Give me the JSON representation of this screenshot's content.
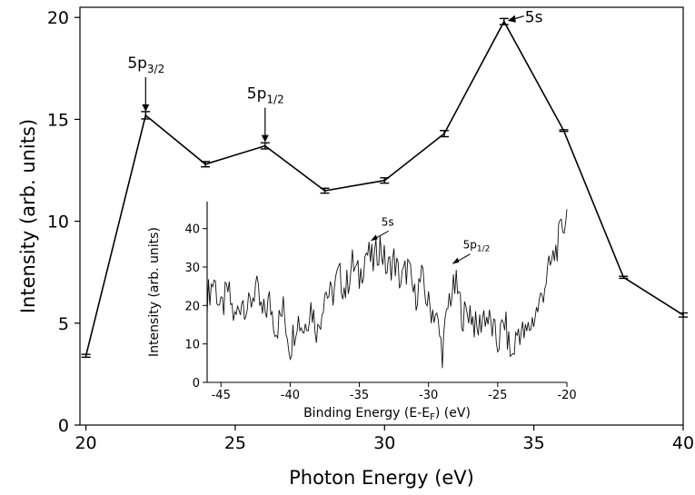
{
  "chart_data": [
    {
      "type": "line",
      "xlabel": "Photon Energy (eV)",
      "ylabel": "Intensity (arb. units)",
      "xlim": [
        19.8,
        40
      ],
      "ylim": [
        0,
        20.5
      ],
      "xticks": [
        20,
        25,
        30,
        35,
        40
      ],
      "yticks": [
        0,
        5,
        10,
        15,
        20
      ],
      "grid": false,
      "series": [
        {
          "x": [
            20,
            22,
            24,
            26,
            28,
            30,
            32,
            34,
            36,
            38,
            40
          ],
          "values": [
            3.4,
            15.2,
            12.8,
            13.7,
            11.5,
            12.0,
            14.3,
            19.8,
            14.45,
            7.25,
            5.4
          ],
          "errors": [
            0.07,
            0.18,
            0.13,
            0.15,
            0.12,
            0.13,
            0.15,
            0.15,
            0.04,
            0.05,
            0.1
          ]
        }
      ],
      "annotations": [
        {
          "text_main": "5p",
          "text_sub": "3/2",
          "x": 22,
          "y": 15.2
        },
        {
          "text_main": "5p",
          "text_sub": "1/2",
          "x": 26,
          "y": 13.7
        },
        {
          "text_main": "5s",
          "text_sub": "",
          "x": 34,
          "y": 19.8
        }
      ]
    },
    {
      "type": "line",
      "xlabel_main": "Binding Energy (E-E",
      "xlabel_sub": "F",
      "xlabel_end": ") (eV)",
      "ylabel": "Intensity (arb. units)",
      "xlim": [
        -46,
        -20
      ],
      "ylim": [
        0,
        47
      ],
      "xticks": [
        -45,
        -40,
        -35,
        -30,
        -25,
        -20
      ],
      "yticks": [
        0,
        10,
        20,
        30,
        40
      ],
      "grid": false,
      "series": [
        {
          "x": [
            -46,
            -45.5,
            -45,
            -44.5,
            -44,
            -43.5,
            -43,
            -42.5,
            -42,
            -41.5,
            -41,
            -40.5,
            -40,
            -39.5,
            -39,
            -38.5,
            -38,
            -37.5,
            -37,
            -36.5,
            -36,
            -35.5,
            -35,
            -34.5,
            -34,
            -33.5,
            -33,
            -32.5,
            -32,
            -31.5,
            -31,
            -30.5,
            -30,
            -29.5,
            -29,
            -28.5,
            -28,
            -27.5,
            -27,
            -26.5,
            -26,
            -25.5,
            -25,
            -24.5,
            -24,
            -23.5,
            -23,
            -22.5,
            -22,
            -21.5,
            -21,
            -20.5,
            -20
          ],
          "values": [
            22,
            27,
            18,
            24,
            16,
            22,
            19,
            25,
            17,
            21,
            14,
            19,
            9,
            17,
            14,
            20,
            13,
            24,
            22,
            28,
            24,
            31,
            27,
            34,
            31,
            36,
            29,
            32,
            26,
            30,
            22,
            27,
            20,
            18,
            8,
            22,
            25,
            17,
            19,
            13,
            18,
            15,
            10,
            16,
            6,
            14,
            12,
            16,
            20,
            27,
            32,
            38,
            44
          ]
        }
      ],
      "annotations": [
        {
          "text_main": "5s",
          "text_sub": "",
          "x": -34.2,
          "y": 37
        },
        {
          "text_main": "5p",
          "text_sub": "1/2",
          "x": -28.3,
          "y": 31
        }
      ]
    }
  ]
}
